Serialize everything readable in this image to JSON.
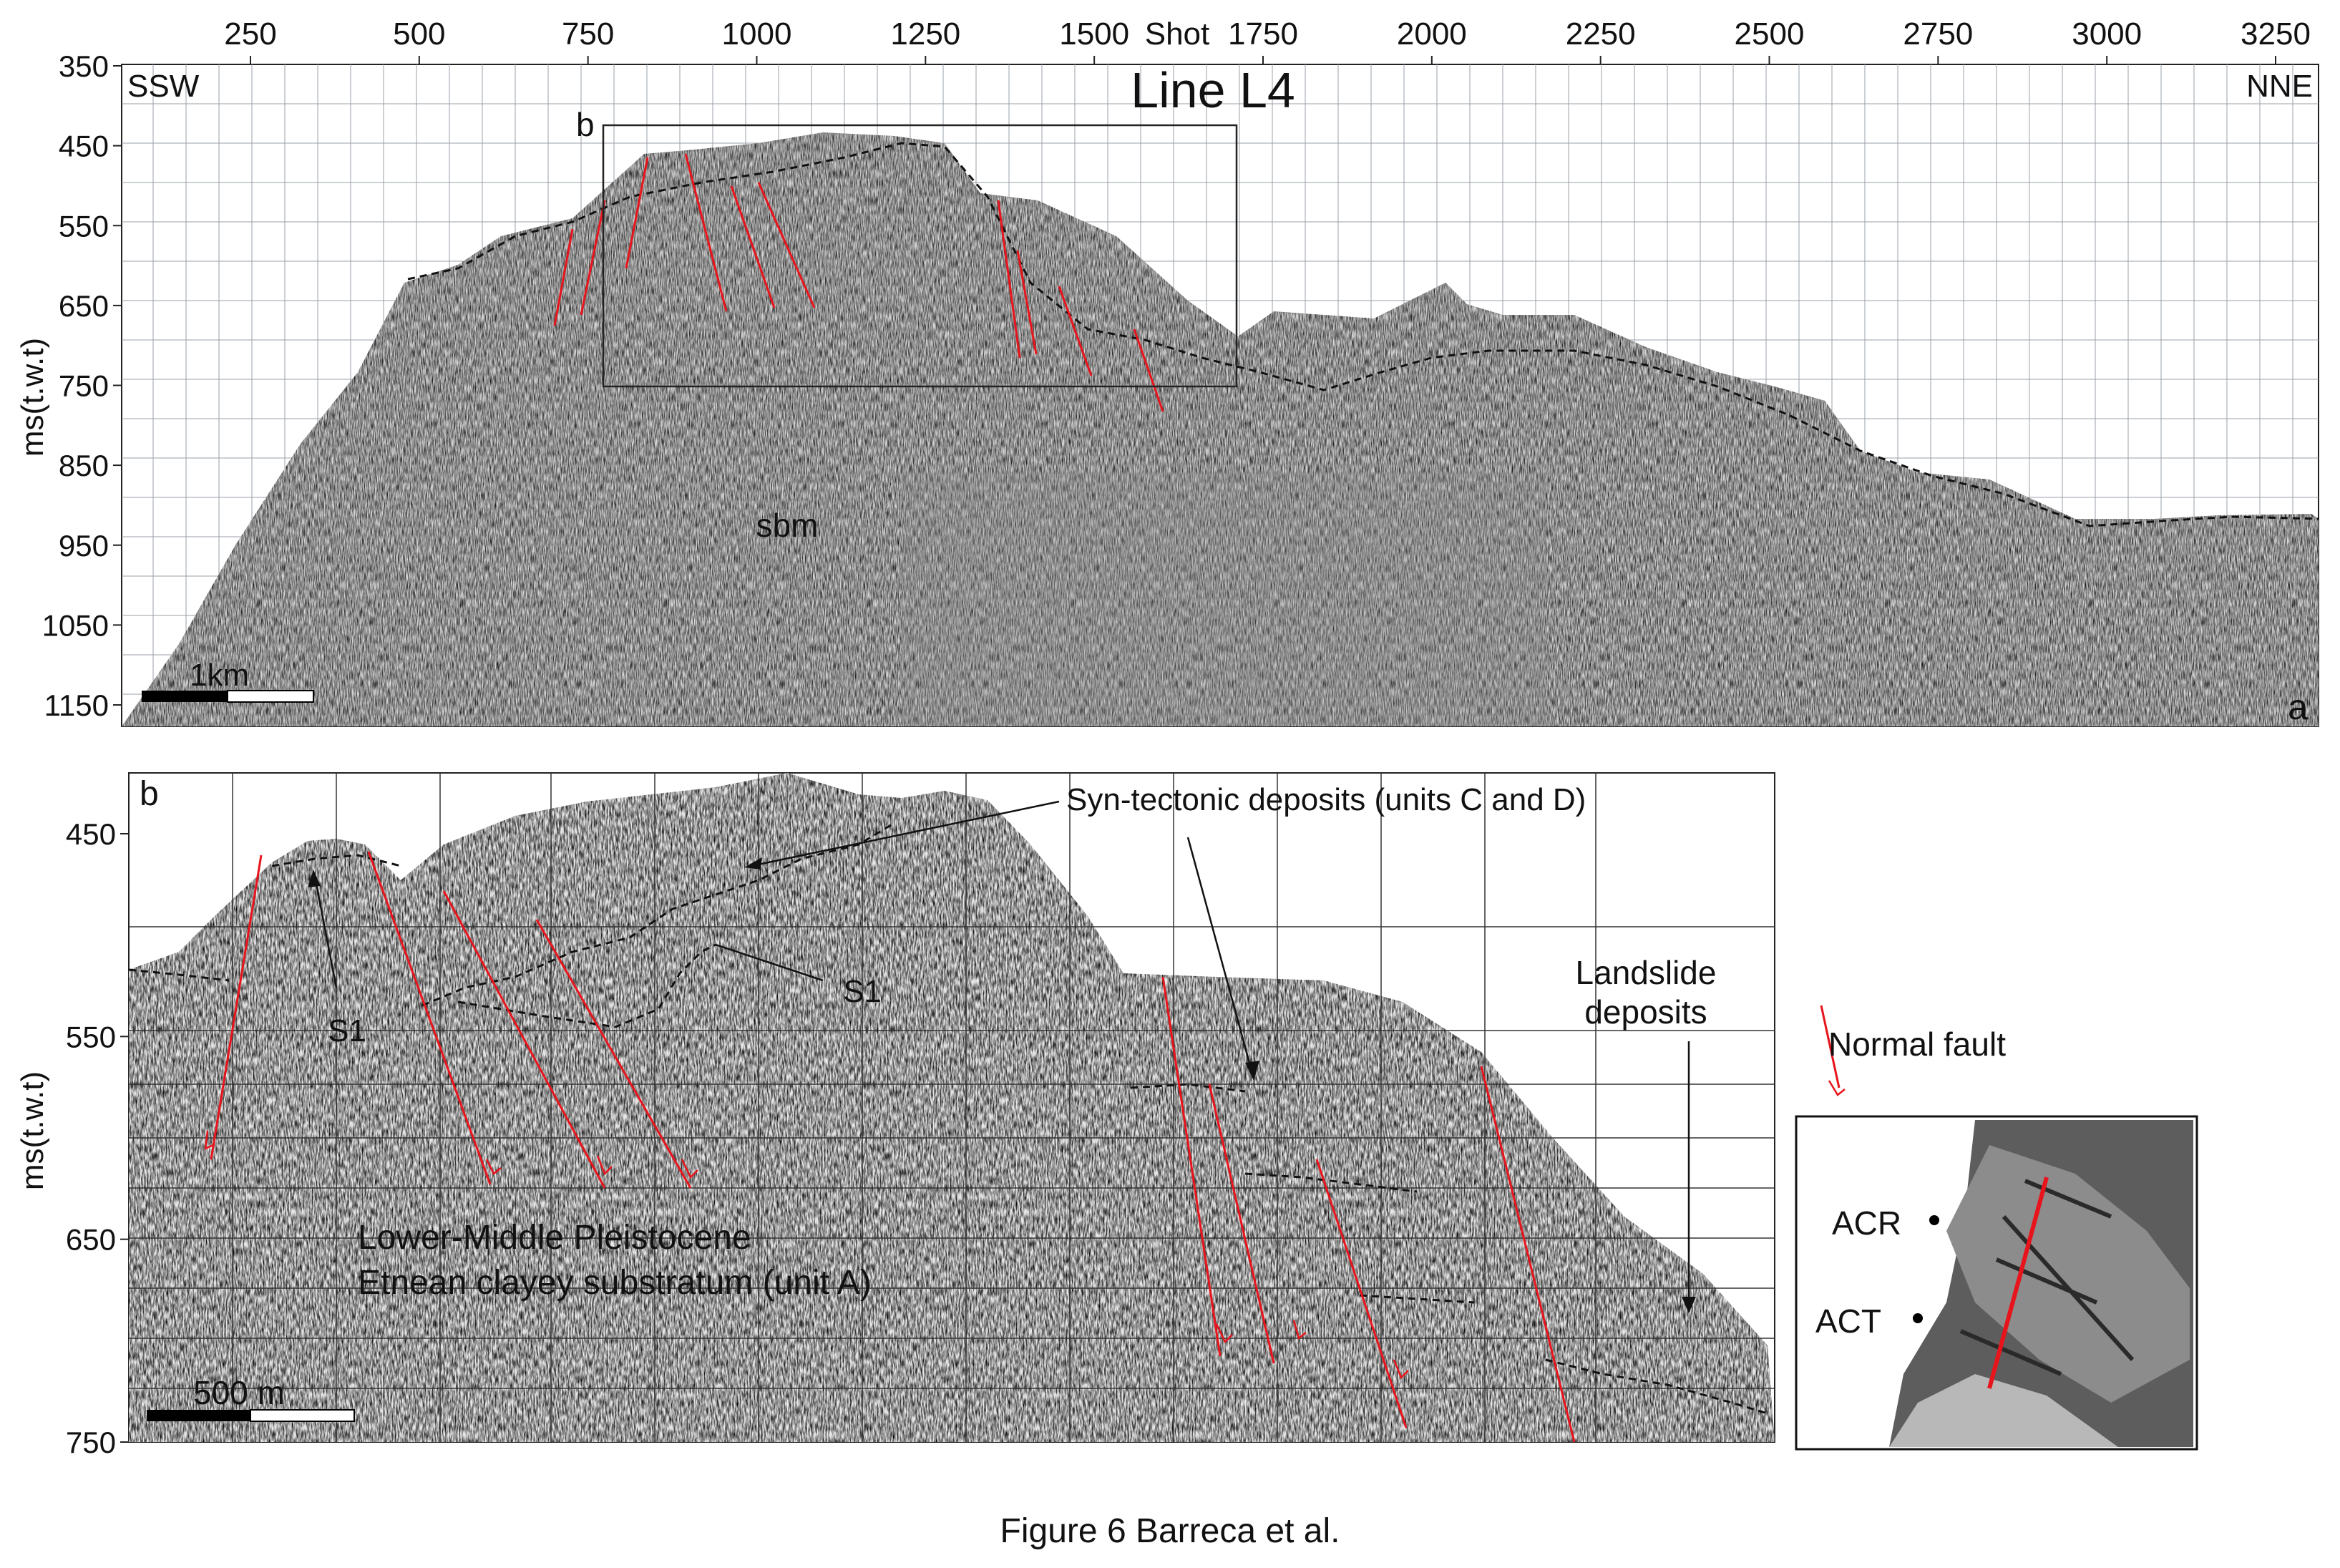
{
  "figure": {
    "caption": "Figure 6 Barreca et al."
  },
  "panel_a": {
    "panel_letter": "a",
    "title": "Line L4",
    "left_direction": "SSW",
    "right_direction": "NNE",
    "x_axis_label": "Shot",
    "y_axis_label": "ms(t.w.t)",
    "x_ticks": [
      {
        "value": 250,
        "label": "250"
      },
      {
        "value": 500,
        "label": "500"
      },
      {
        "value": 750,
        "label": "750"
      },
      {
        "value": 1000,
        "label": "1000"
      },
      {
        "value": 1250,
        "label": "1250"
      },
      {
        "value": 1500,
        "label": "1500"
      },
      {
        "value": 1750,
        "label": "1750"
      },
      {
        "value": 2000,
        "label": "2000"
      },
      {
        "value": 2250,
        "label": "2250"
      },
      {
        "value": 2500,
        "label": "2500"
      },
      {
        "value": 2750,
        "label": "2750"
      },
      {
        "value": 3000,
        "label": "3000"
      },
      {
        "value": 3250,
        "label": "3250"
      }
    ],
    "y_ticks": [
      {
        "value": 350,
        "label": "350"
      },
      {
        "value": 450,
        "label": "450"
      },
      {
        "value": 550,
        "label": "550"
      },
      {
        "value": 650,
        "label": "650"
      },
      {
        "value": 750,
        "label": "750"
      },
      {
        "value": 850,
        "label": "850"
      },
      {
        "value": 950,
        "label": "950"
      },
      {
        "value": 1050,
        "label": "1050"
      },
      {
        "value": 1150,
        "label": "1150"
      }
    ],
    "scale_bar_label": "1km",
    "zoom_box_label": "b",
    "annotation_sbm": "sbm"
  },
  "panel_b": {
    "panel_letter": "b",
    "y_axis_label": "ms(t.w.t)",
    "y_ticks": [
      {
        "value": 450,
        "label": "450"
      },
      {
        "value": 550,
        "label": "550"
      },
      {
        "value": 650,
        "label": "650"
      },
      {
        "value": 750,
        "label": "750"
      }
    ],
    "scale_bar_label": "500 m",
    "annotation_syn_tectonic": "Syn-tectonic deposits (units C and D)",
    "annotation_s1_left": "S1",
    "annotation_s1_right": "S1",
    "annotation_landslide_line1": "Landslide",
    "annotation_landslide_line2": "deposits",
    "annotation_substratum_line1": "Lower-Middle Pleistocene",
    "annotation_substratum_line2": "Etnean clayey substratum (unit A)"
  },
  "legend": {
    "normal_fault_label": "Normal fault",
    "fault_color": "#e8141c"
  },
  "inset_map": {
    "label_acr": "ACR",
    "label_act": "ACT"
  }
}
